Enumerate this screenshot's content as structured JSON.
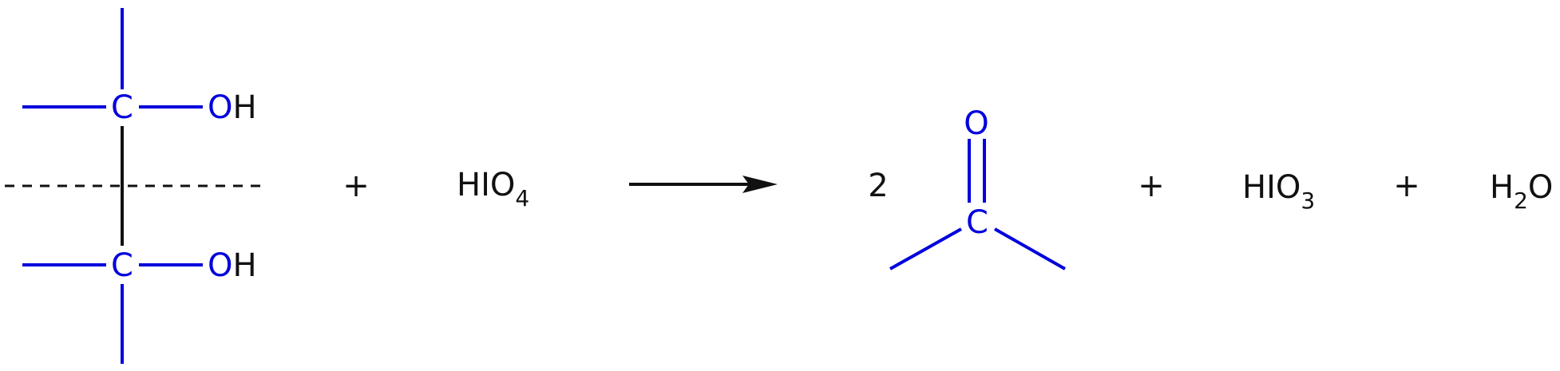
{
  "reactant_diol": {
    "top_carbon": "C",
    "top_hydroxyl": {
      "o": "O",
      "h": "H"
    },
    "bottom_carbon": "C",
    "bottom_hydroxyl": {
      "o": "O",
      "h": "H"
    }
  },
  "plus_1": "+",
  "periodic_acid": {
    "main": "HIO",
    "sub": "4"
  },
  "product_coefficient": "2",
  "ketone": {
    "oxygen": "O",
    "carbon": "C"
  },
  "plus_2": "+",
  "iodic_acid": {
    "main": "HIO",
    "sub": "3"
  },
  "plus_3": "+",
  "water": {
    "h": "H",
    "sub": "2",
    "o": "O"
  },
  "colors": {
    "atom": "#0000dd",
    "bond_backbone": "#111111",
    "text": "#111111"
  }
}
